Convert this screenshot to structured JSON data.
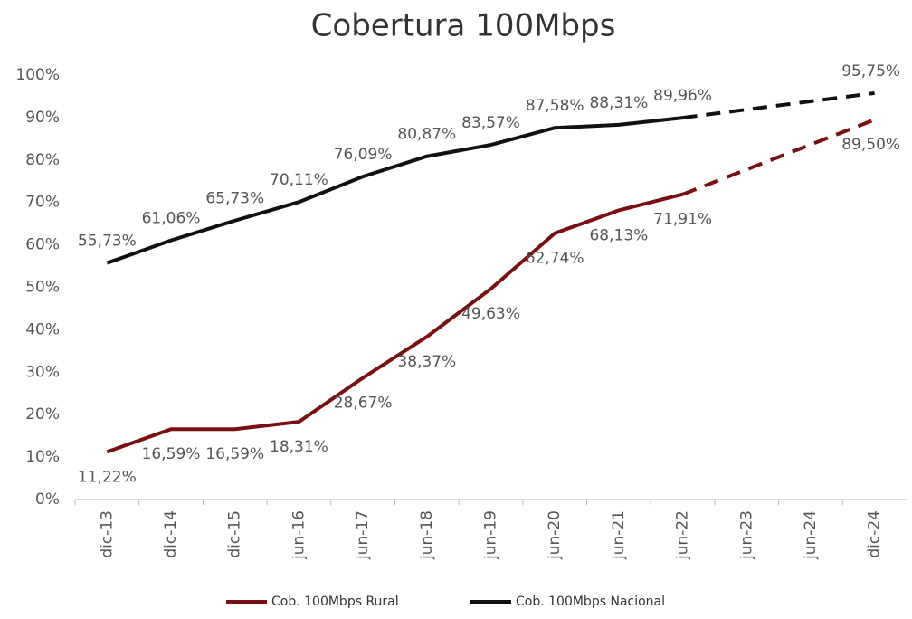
{
  "chart_data": {
    "type": "line",
    "title": "Cobertura 100Mbps",
    "categories": [
      "dic-13",
      "dic-14",
      "dic-15",
      "jun-16",
      "jun-17",
      "jun-18",
      "jun-19",
      "jun-20",
      "jun-21",
      "jun-22",
      "jun-23",
      "jun-24",
      "dic-24"
    ],
    "series": [
      {
        "name": "Cob. 100Mbps Rural",
        "color": "#7a0f10",
        "values": [
          11.22,
          16.59,
          16.59,
          18.31,
          28.67,
          38.37,
          49.63,
          62.74,
          68.13,
          71.91,
          null,
          null,
          89.5
        ],
        "value_labels": [
          "11,22%",
          "16,59%",
          "16,59%",
          "18,31%",
          "28,67%",
          "38,37%",
          "49,63%",
          "62,74%",
          "68,13%",
          "71,91%",
          null,
          null,
          "89,50%"
        ]
      },
      {
        "name": "Cob. 100Mbps Nacional",
        "color": "#111111",
        "values": [
          55.73,
          61.06,
          65.73,
          70.11,
          76.09,
          80.87,
          83.57,
          87.58,
          88.31,
          89.96,
          null,
          null,
          95.75
        ],
        "value_labels": [
          "55,73%",
          "61,06%",
          "65,73%",
          "70,11%",
          "76,09%",
          "80,87%",
          "83,57%",
          "87,58%",
          "88,31%",
          "89,96%",
          null,
          null,
          "95,75%"
        ]
      }
    ],
    "gap_style": "dashed",
    "ylim": [
      0,
      100
    ],
    "yticks": [
      {
        "value": 0,
        "label": "0%"
      },
      {
        "value": 10,
        "label": "10%"
      },
      {
        "value": 20,
        "label": "20%"
      },
      {
        "value": 30,
        "label": "30%"
      },
      {
        "value": 40,
        "label": "40%"
      },
      {
        "value": 50,
        "label": "50%"
      },
      {
        "value": 60,
        "label": "60%"
      },
      {
        "value": 70,
        "label": "70%"
      },
      {
        "value": 80,
        "label": "80%"
      },
      {
        "value": 90,
        "label": "90%"
      },
      {
        "value": 100,
        "label": "100%"
      }
    ],
    "grid": false,
    "legend": "bottom"
  }
}
